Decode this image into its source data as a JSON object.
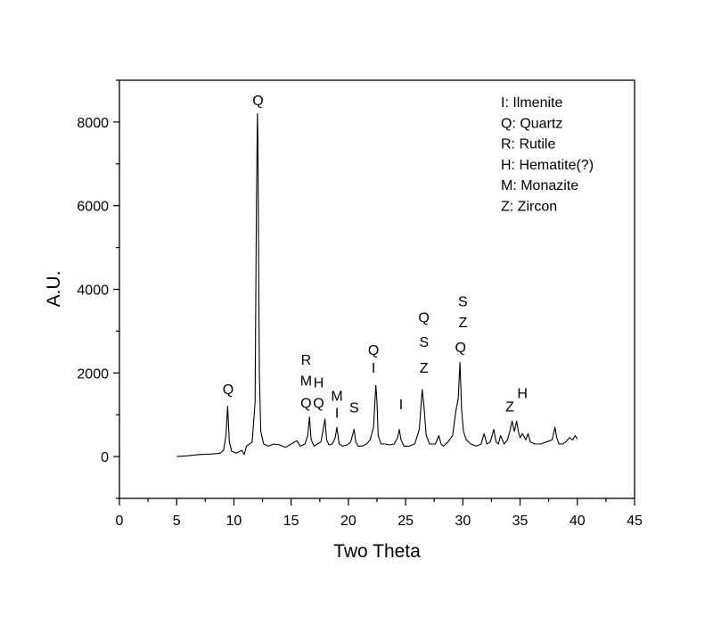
{
  "chart_data": {
    "type": "line",
    "title": "",
    "xlabel": "Two Theta",
    "ylabel": "A.U.",
    "xlim": [
      0,
      45
    ],
    "ylim": [
      -1000,
      9000
    ],
    "xticks": [
      0,
      5,
      10,
      15,
      20,
      25,
      30,
      35,
      40,
      45
    ],
    "yticks": [
      0,
      2000,
      4000,
      6000,
      8000
    ],
    "grid": false,
    "legend_position": "top-right",
    "legend": [
      "I: Ilmenite",
      "Q: Quartz",
      "R: Rutile",
      "H: Hematite(?)",
      "M: Monazite",
      "Z: Zircon"
    ],
    "series": [
      {
        "color": "#000000",
        "x": [
          5.0,
          6.0,
          7.0,
          8.0,
          8.8,
          9.1,
          9.3,
          9.45,
          9.6,
          9.8,
          10.2,
          10.7,
          10.9,
          11.1,
          11.6,
          11.85,
          11.97,
          12.05,
          12.1,
          12.15,
          12.22,
          12.35,
          12.6,
          13.0,
          13.5,
          14.0,
          14.5,
          15.0,
          15.5,
          15.8,
          16.2,
          16.45,
          16.6,
          16.75,
          17.0,
          17.3,
          17.6,
          17.8,
          17.95,
          18.1,
          18.3,
          18.6,
          18.85,
          19.0,
          19.2,
          19.5,
          19.9,
          20.2,
          20.5,
          20.65,
          20.85,
          21.2,
          21.6,
          21.9,
          22.2,
          22.4,
          22.5,
          22.6,
          22.85,
          23.2,
          23.6,
          24.0,
          24.3,
          24.45,
          24.6,
          24.85,
          25.3,
          25.8,
          26.2,
          26.45,
          26.6,
          26.8,
          27.1,
          27.6,
          27.9,
          28.1,
          28.3,
          28.7,
          29.1,
          29.4,
          29.6,
          29.75,
          29.9,
          30.05,
          30.3,
          30.7,
          31.2,
          31.6,
          31.85,
          32.1,
          32.4,
          32.7,
          32.9,
          33.1,
          33.3,
          33.6,
          33.9,
          34.1,
          34.3,
          34.5,
          34.7,
          34.85,
          35.0,
          35.2,
          35.5,
          35.7,
          35.9,
          36.3,
          36.8,
          37.3,
          37.8,
          38.05,
          38.2,
          38.4,
          38.7,
          39.0,
          39.3,
          39.6,
          39.8,
          40.0
        ],
        "y": [
          0,
          20,
          50,
          60,
          80,
          150,
          500,
          1200,
          350,
          130,
          80,
          150,
          50,
          250,
          350,
          1300,
          6000,
          8200,
          7500,
          5000,
          2000,
          600,
          300,
          250,
          300,
          280,
          220,
          300,
          380,
          250,
          300,
          500,
          950,
          400,
          250,
          300,
          350,
          650,
          900,
          400,
          280,
          300,
          450,
          700,
          300,
          250,
          280,
          350,
          650,
          350,
          250,
          250,
          300,
          400,
          700,
          1700,
          1300,
          500,
          300,
          300,
          280,
          300,
          450,
          650,
          400,
          250,
          250,
          300,
          650,
          1600,
          1200,
          500,
          300,
          300,
          500,
          300,
          250,
          350,
          500,
          1100,
          1400,
          2250,
          1100,
          600,
          400,
          300,
          250,
          300,
          550,
          300,
          350,
          650,
          350,
          300,
          500,
          300,
          400,
          600,
          850,
          600,
          850,
          600,
          450,
          550,
          400,
          550,
          350,
          300,
          300,
          350,
          400,
          700,
          450,
          300,
          300,
          350,
          450,
          400,
          500,
          420
        ]
      }
    ],
    "annotations": [
      {
        "text": "Q",
        "x": 9.5,
        "y": 1500
      },
      {
        "text": "Q",
        "x": 12.1,
        "y": 8400
      },
      {
        "text": "R",
        "x": 16.3,
        "y": 2200
      },
      {
        "text": "M",
        "x": 16.3,
        "y": 1700
      },
      {
        "text": "Q",
        "x": 16.3,
        "y": 1160
      },
      {
        "text": "H",
        "x": 17.4,
        "y": 1650
      },
      {
        "text": "Q",
        "x": 17.4,
        "y": 1160
      },
      {
        "text": "M",
        "x": 19.0,
        "y": 1340
      },
      {
        "text": "I",
        "x": 19.0,
        "y": 930
      },
      {
        "text": "S",
        "x": 20.5,
        "y": 1060
      },
      {
        "text": "Q",
        "x": 22.2,
        "y": 2430
      },
      {
        "text": "I",
        "x": 22.2,
        "y": 2010
      },
      {
        "text": "I",
        "x": 24.6,
        "y": 1130
      },
      {
        "text": "Q",
        "x": 26.6,
        "y": 3210
      },
      {
        "text": "S",
        "x": 26.6,
        "y": 2630
      },
      {
        "text": "Z",
        "x": 26.6,
        "y": 2010
      },
      {
        "text": "S",
        "x": 30.0,
        "y": 3590
      },
      {
        "text": "Z",
        "x": 30.0,
        "y": 3090
      },
      {
        "text": "Q",
        "x": 29.8,
        "y": 2500
      },
      {
        "text": "Z",
        "x": 34.1,
        "y": 1080
      },
      {
        "text": "H",
        "x": 35.2,
        "y": 1400
      }
    ]
  }
}
